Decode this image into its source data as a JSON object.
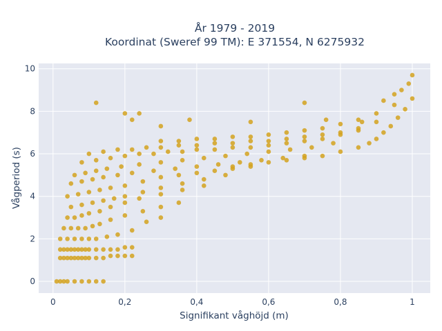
{
  "chart_data": {
    "type": "scatter",
    "title_line1": "År 1979 - 2019",
    "title_line2": "Koordinat (Sweref 99 TM): E 371554, N 6275932",
    "xlabel": "Signifikant våghöjd (m)",
    "ylabel": "Vågperiod (s)",
    "xlim": [
      -0.04,
      1.05
    ],
    "ylim": [
      -0.55,
      10.25
    ],
    "x_ticks": [
      0,
      0.2,
      0.4,
      0.6,
      0.8,
      1
    ],
    "x_tick_labels": [
      "0",
      "0,2",
      "0,4",
      "0,6",
      "0,8",
      "1"
    ],
    "y_ticks": [
      0,
      2,
      4,
      6,
      8,
      10
    ],
    "y_tick_labels": [
      "0",
      "2",
      "4",
      "6",
      "8",
      "10"
    ],
    "grid": true,
    "legend": "none",
    "series": [
      {
        "marker_color": "#d4a21f",
        "x": [
          0.01,
          0.02,
          0.03,
          0.04,
          0.06,
          0.08,
          0.1,
          0.12,
          0.14,
          0.02,
          0.03,
          0.04,
          0.05,
          0.06,
          0.07,
          0.08,
          0.09,
          0.1,
          0.12,
          0.14,
          0.16,
          0.18,
          0.2,
          0.22,
          0.02,
          0.03,
          0.04,
          0.05,
          0.06,
          0.07,
          0.08,
          0.09,
          0.1,
          0.12,
          0.14,
          0.16,
          0.18,
          0.2,
          0.22,
          0.02,
          0.04,
          0.06,
          0.08,
          0.1,
          0.12,
          0.15,
          0.18,
          0.22,
          0.26,
          0.3,
          0.03,
          0.05,
          0.07,
          0.09,
          0.11,
          0.13,
          0.16,
          0.2,
          0.25,
          0.3,
          0.35,
          0.04,
          0.06,
          0.08,
          0.1,
          0.13,
          0.16,
          0.2,
          0.24,
          0.3,
          0.36,
          0.42,
          0.05,
          0.08,
          0.11,
          0.14,
          0.17,
          0.2,
          0.25,
          0.3,
          0.36,
          0.42,
          0.48,
          0.04,
          0.07,
          0.1,
          0.13,
          0.16,
          0.2,
          0.25,
          0.3,
          0.35,
          0.4,
          0.45,
          0.5,
          0.55,
          0.05,
          0.08,
          0.11,
          0.14,
          0.18,
          0.22,
          0.28,
          0.34,
          0.4,
          0.46,
          0.52,
          0.58,
          0.64,
          0.7,
          0.06,
          0.09,
          0.12,
          0.15,
          0.19,
          0.24,
          0.3,
          0.36,
          0.42,
          0.48,
          0.54,
          0.6,
          0.66,
          0.72,
          0.78,
          0.08,
          0.12,
          0.16,
          0.2,
          0.24,
          0.28,
          0.32,
          0.36,
          0.4,
          0.45,
          0.5,
          0.55,
          0.6,
          0.65,
          0.7,
          0.75,
          0.8,
          0.85,
          0.1,
          0.14,
          0.18,
          0.22,
          0.26,
          0.3,
          0.35,
          0.4,
          0.45,
          0.5,
          0.55,
          0.6,
          0.65,
          0.7,
          0.75,
          0.8,
          0.85,
          0.9,
          0.3,
          0.35,
          0.4,
          0.45,
          0.5,
          0.55,
          0.6,
          0.65,
          0.7,
          0.75,
          0.8,
          0.85,
          0.9,
          0.95,
          0.5,
          0.55,
          0.6,
          0.65,
          0.7,
          0.75,
          0.8,
          0.85,
          0.88,
          0.9,
          0.92,
          0.94,
          0.96,
          0.98,
          1.0,
          0.12,
          0.2,
          0.22,
          0.24,
          0.3,
          0.38,
          0.55,
          0.7,
          0.76,
          0.86,
          0.92,
          0.95,
          0.97,
          0.99,
          1.0
        ],
        "y": [
          0.0,
          0.0,
          0.0,
          0.0,
          0.0,
          0.0,
          0.0,
          0.0,
          0.0,
          1.1,
          1.1,
          1.1,
          1.1,
          1.1,
          1.1,
          1.1,
          1.1,
          1.1,
          1.1,
          1.1,
          1.2,
          1.2,
          1.2,
          1.2,
          1.5,
          1.5,
          1.5,
          1.5,
          1.5,
          1.5,
          1.5,
          1.5,
          1.5,
          1.5,
          1.5,
          1.5,
          1.5,
          1.6,
          1.6,
          2.0,
          2.0,
          2.0,
          2.0,
          2.0,
          2.0,
          2.1,
          2.2,
          2.4,
          2.8,
          3.0,
          2.5,
          2.5,
          2.5,
          2.5,
          2.6,
          2.7,
          2.9,
          3.1,
          3.3,
          3.5,
          3.7,
          3.0,
          3.0,
          3.1,
          3.2,
          3.3,
          3.5,
          3.7,
          3.9,
          4.1,
          4.3,
          4.5,
          3.5,
          3.6,
          3.7,
          3.8,
          3.9,
          4.0,
          4.2,
          4.4,
          4.6,
          4.8,
          5.0,
          4.0,
          4.1,
          4.2,
          4.3,
          4.4,
          4.5,
          4.7,
          4.9,
          5.0,
          5.1,
          5.2,
          5.3,
          5.4,
          4.6,
          4.7,
          4.8,
          4.9,
          5.0,
          5.1,
          5.2,
          5.3,
          5.4,
          5.5,
          5.6,
          5.7,
          5.8,
          5.9,
          5.0,
          5.1,
          5.2,
          5.3,
          5.4,
          5.5,
          5.6,
          5.7,
          5.8,
          5.9,
          6.0,
          6.1,
          6.2,
          6.3,
          6.5,
          5.6,
          5.7,
          5.8,
          5.9,
          6.0,
          6.0,
          6.1,
          6.1,
          6.2,
          6.2,
          6.3,
          6.3,
          6.4,
          6.5,
          6.6,
          6.7,
          6.9,
          7.1,
          6.0,
          6.1,
          6.2,
          6.2,
          6.3,
          6.3,
          6.4,
          6.4,
          6.5,
          6.5,
          6.6,
          6.6,
          6.7,
          6.8,
          6.9,
          7.0,
          7.2,
          7.5,
          6.6,
          6.6,
          6.7,
          6.7,
          6.8,
          6.8,
          6.9,
          7.0,
          7.1,
          7.2,
          7.4,
          7.6,
          7.9,
          8.3,
          5.4,
          5.5,
          5.6,
          5.7,
          5.8,
          5.9,
          6.1,
          6.3,
          6.5,
          6.7,
          7.0,
          7.3,
          7.7,
          8.1,
          8.6,
          8.4,
          7.9,
          7.6,
          7.9,
          7.3,
          7.6,
          7.5,
          8.4,
          7.6,
          7.5,
          8.5,
          8.8,
          9.0,
          9.3,
          9.7
        ]
      }
    ]
  }
}
